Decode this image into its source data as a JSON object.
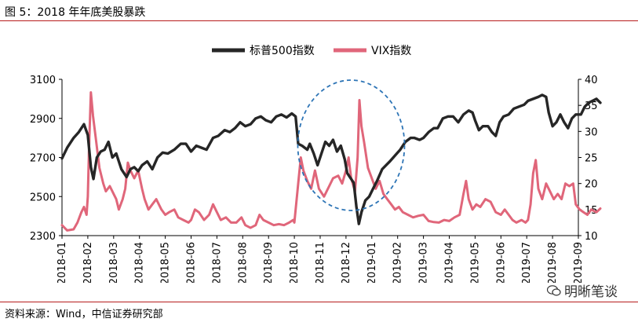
{
  "header": {
    "title": "图 5：2018 年年底美股暴跌"
  },
  "footer": {
    "source": "资料来源：Wind，中信证券研究部"
  },
  "watermark": {
    "text": "明晰笔谈",
    "icon": "wechat-icon"
  },
  "colors": {
    "spx": "#262626",
    "vix": "#e0667a",
    "rule": "#b71c1c",
    "ellipse": "#2e75b6"
  },
  "chart_data": {
    "type": "line",
    "legend": [
      "标普500指数",
      "VIX指数"
    ],
    "legend_position": "top-center",
    "grid": false,
    "x_ticks": [
      "2018-01",
      "2018-02",
      "2018-03",
      "2018-04",
      "2018-05",
      "2018-06",
      "2018-07",
      "2018-08",
      "2018-09",
      "2018-10",
      "2018-11",
      "2018-12",
      "2019-01",
      "2019-02",
      "2019-03",
      "2019-04",
      "2019-05",
      "2019-06",
      "2019-07",
      "2019-08",
      "2019-09"
    ],
    "y_left": {
      "ticks": [
        2300,
        2500,
        2700,
        2900,
        3100
      ],
      "lim": [
        2300,
        3100
      ]
    },
    "y_right": {
      "ticks": [
        10,
        15,
        20,
        25,
        30,
        35,
        40
      ],
      "lim": [
        10,
        40
      ]
    },
    "series": [
      {
        "name": "标普500指数",
        "axis": "left",
        "points": [
          [
            0,
            2695
          ],
          [
            0.2,
            2750
          ],
          [
            0.45,
            2800
          ],
          [
            0.65,
            2830
          ],
          [
            0.85,
            2870
          ],
          [
            1.0,
            2815
          ],
          [
            1.12,
            2650
          ],
          [
            1.22,
            2590
          ],
          [
            1.35,
            2700
          ],
          [
            1.5,
            2730
          ],
          [
            1.65,
            2740
          ],
          [
            1.8,
            2780
          ],
          [
            1.95,
            2700
          ],
          [
            2.1,
            2720
          ],
          [
            2.3,
            2640
          ],
          [
            2.5,
            2600
          ],
          [
            2.65,
            2640
          ],
          [
            2.8,
            2650
          ],
          [
            2.95,
            2630
          ],
          [
            3.1,
            2660
          ],
          [
            3.3,
            2680
          ],
          [
            3.5,
            2640
          ],
          [
            3.7,
            2700
          ],
          [
            3.9,
            2725
          ],
          [
            4.1,
            2720
          ],
          [
            4.35,
            2740
          ],
          [
            4.6,
            2770
          ],
          [
            4.8,
            2770
          ],
          [
            5.0,
            2730
          ],
          [
            5.2,
            2760
          ],
          [
            5.4,
            2750
          ],
          [
            5.6,
            2740
          ],
          [
            5.85,
            2800
          ],
          [
            6.05,
            2810
          ],
          [
            6.3,
            2840
          ],
          [
            6.5,
            2830
          ],
          [
            6.7,
            2850
          ],
          [
            6.9,
            2880
          ],
          [
            7.1,
            2860
          ],
          [
            7.3,
            2870
          ],
          [
            7.5,
            2900
          ],
          [
            7.7,
            2910
          ],
          [
            7.9,
            2890
          ],
          [
            8.1,
            2880
          ],
          [
            8.3,
            2910
          ],
          [
            8.5,
            2920
          ],
          [
            8.7,
            2905
          ],
          [
            8.9,
            2925
          ],
          [
            9.05,
            2910
          ],
          [
            9.15,
            2770
          ],
          [
            9.3,
            2760
          ],
          [
            9.5,
            2740
          ],
          [
            9.6,
            2770
          ],
          [
            9.75,
            2720
          ],
          [
            9.9,
            2660
          ],
          [
            10.05,
            2720
          ],
          [
            10.2,
            2780
          ],
          [
            10.35,
            2760
          ],
          [
            10.5,
            2790
          ],
          [
            10.65,
            2730
          ],
          [
            10.8,
            2760
          ],
          [
            10.95,
            2690
          ],
          [
            11.05,
            2620
          ],
          [
            11.15,
            2600
          ],
          [
            11.3,
            2570
          ],
          [
            11.4,
            2450
          ],
          [
            11.5,
            2360
          ],
          [
            11.6,
            2420
          ],
          [
            11.75,
            2480
          ],
          [
            11.9,
            2500
          ],
          [
            12.05,
            2540
          ],
          [
            12.2,
            2580
          ],
          [
            12.4,
            2640
          ],
          [
            12.55,
            2660
          ],
          [
            12.7,
            2680
          ],
          [
            12.9,
            2710
          ],
          [
            13.1,
            2740
          ],
          [
            13.3,
            2780
          ],
          [
            13.5,
            2800
          ],
          [
            13.65,
            2800
          ],
          [
            13.85,
            2790
          ],
          [
            14.0,
            2800
          ],
          [
            14.2,
            2830
          ],
          [
            14.4,
            2850
          ],
          [
            14.55,
            2850
          ],
          [
            14.75,
            2900
          ],
          [
            14.95,
            2910
          ],
          [
            15.15,
            2910
          ],
          [
            15.35,
            2880
          ],
          [
            15.55,
            2920
          ],
          [
            15.75,
            2940
          ],
          [
            15.9,
            2930
          ],
          [
            16.0,
            2890
          ],
          [
            16.15,
            2840
          ],
          [
            16.3,
            2860
          ],
          [
            16.5,
            2860
          ],
          [
            16.65,
            2830
          ],
          [
            16.8,
            2810
          ],
          [
            16.95,
            2880
          ],
          [
            17.1,
            2910
          ],
          [
            17.3,
            2920
          ],
          [
            17.5,
            2950
          ],
          [
            17.7,
            2960
          ],
          [
            17.9,
            2970
          ],
          [
            18.05,
            2990
          ],
          [
            18.25,
            3000
          ],
          [
            18.45,
            3010
          ],
          [
            18.6,
            3020
          ],
          [
            18.75,
            3010
          ],
          [
            18.85,
            2930
          ],
          [
            19.0,
            2860
          ],
          [
            19.15,
            2880
          ],
          [
            19.3,
            2920
          ],
          [
            19.45,
            2880
          ],
          [
            19.6,
            2850
          ],
          [
            19.75,
            2900
          ],
          [
            19.9,
            2920
          ],
          [
            20.1,
            2920
          ],
          [
            20.25,
            2960
          ],
          [
            20.4,
            2980
          ],
          [
            20.55,
            2990
          ],
          [
            20.7,
            3000
          ],
          [
            20.85,
            2980
          ]
        ]
      },
      {
        "name": "VIX指数",
        "axis": "right",
        "points": [
          [
            0,
            12.0
          ],
          [
            0.2,
            11.0
          ],
          [
            0.45,
            11.2
          ],
          [
            0.6,
            12.5
          ],
          [
            0.75,
            14.5
          ],
          [
            0.85,
            15.5
          ],
          [
            0.95,
            14.0
          ],
          [
            1.0,
            17.5
          ],
          [
            1.05,
            27.0
          ],
          [
            1.12,
            37.5
          ],
          [
            1.2,
            33.0
          ],
          [
            1.3,
            29.0
          ],
          [
            1.45,
            23.0
          ],
          [
            1.6,
            20.0
          ],
          [
            1.7,
            18.5
          ],
          [
            1.85,
            19.5
          ],
          [
            2.0,
            18.0
          ],
          [
            2.1,
            17.0
          ],
          [
            2.2,
            15.0
          ],
          [
            2.35,
            17.0
          ],
          [
            2.45,
            19.0
          ],
          [
            2.55,
            24.0
          ],
          [
            2.65,
            22.5
          ],
          [
            2.8,
            21.0
          ],
          [
            2.95,
            22.5
          ],
          [
            3.1,
            19.0
          ],
          [
            3.2,
            17.0
          ],
          [
            3.35,
            15.0
          ],
          [
            3.5,
            16.0
          ],
          [
            3.65,
            17.0
          ],
          [
            3.85,
            15.0
          ],
          [
            4.0,
            14.0
          ],
          [
            4.15,
            14.5
          ],
          [
            4.35,
            15.0
          ],
          [
            4.5,
            13.5
          ],
          [
            4.7,
            13.0
          ],
          [
            4.9,
            12.5
          ],
          [
            5.0,
            13.0
          ],
          [
            5.15,
            15.0
          ],
          [
            5.3,
            14.5
          ],
          [
            5.5,
            13.0
          ],
          [
            5.7,
            14.0
          ],
          [
            5.85,
            16.0
          ],
          [
            6.0,
            14.5
          ],
          [
            6.15,
            13.0
          ],
          [
            6.35,
            13.5
          ],
          [
            6.55,
            12.5
          ],
          [
            6.75,
            12.5
          ],
          [
            6.95,
            13.5
          ],
          [
            7.1,
            12.0
          ],
          [
            7.3,
            11.5
          ],
          [
            7.5,
            12.0
          ],
          [
            7.65,
            14.0
          ],
          [
            7.8,
            13.0
          ],
          [
            8.0,
            12.5
          ],
          [
            8.2,
            12.0
          ],
          [
            8.4,
            12.2
          ],
          [
            8.6,
            12.0
          ],
          [
            8.8,
            12.5
          ],
          [
            8.95,
            13.0
          ],
          [
            9.0,
            12.5
          ],
          [
            9.15,
            20.0
          ],
          [
            9.25,
            25.0
          ],
          [
            9.35,
            22.5
          ],
          [
            9.5,
            20.5
          ],
          [
            9.65,
            19.0
          ],
          [
            9.8,
            22.5
          ],
          [
            9.95,
            19.0
          ],
          [
            10.15,
            17.5
          ],
          [
            10.35,
            19.5
          ],
          [
            10.5,
            21.0
          ],
          [
            10.7,
            21.5
          ],
          [
            10.85,
            20.0
          ],
          [
            11.0,
            22.5
          ],
          [
            11.1,
            25.0
          ],
          [
            11.2,
            21.0
          ],
          [
            11.35,
            18.5
          ],
          [
            11.45,
            25.0
          ],
          [
            11.52,
            36.0
          ],
          [
            11.6,
            31.0
          ],
          [
            11.7,
            28.0
          ],
          [
            11.85,
            23.0
          ],
          [
            12.0,
            21.0
          ],
          [
            12.15,
            19.0
          ],
          [
            12.3,
            20.5
          ],
          [
            12.45,
            18.0
          ],
          [
            12.6,
            17.0
          ],
          [
            12.75,
            16.0
          ],
          [
            12.9,
            15.0
          ],
          [
            13.05,
            15.5
          ],
          [
            13.2,
            14.5
          ],
          [
            13.4,
            14.0
          ],
          [
            13.6,
            13.5
          ],
          [
            13.8,
            13.8
          ],
          [
            14.0,
            14.0
          ],
          [
            14.2,
            12.8
          ],
          [
            14.4,
            12.6
          ],
          [
            14.6,
            12.5
          ],
          [
            14.8,
            13.0
          ],
          [
            15.0,
            12.8
          ],
          [
            15.2,
            13.5
          ],
          [
            15.4,
            14.0
          ],
          [
            15.55,
            18.0
          ],
          [
            15.65,
            20.5
          ],
          [
            15.75,
            17.0
          ],
          [
            15.9,
            15.0
          ],
          [
            16.05,
            16.0
          ],
          [
            16.2,
            15.5
          ],
          [
            16.4,
            17.0
          ],
          [
            16.6,
            16.5
          ],
          [
            16.8,
            14.5
          ],
          [
            17.0,
            14.0
          ],
          [
            17.15,
            15.0
          ],
          [
            17.3,
            14.0
          ],
          [
            17.45,
            13.0
          ],
          [
            17.6,
            12.5
          ],
          [
            17.8,
            13.0
          ],
          [
            17.95,
            12.5
          ],
          [
            18.05,
            13.0
          ],
          [
            18.15,
            16.0
          ],
          [
            18.25,
            22.0
          ],
          [
            18.35,
            24.5
          ],
          [
            18.45,
            19.0
          ],
          [
            18.6,
            17.0
          ],
          [
            18.75,
            20.0
          ],
          [
            18.9,
            18.5
          ],
          [
            19.05,
            17.0
          ],
          [
            19.2,
            18.0
          ],
          [
            19.35,
            17.0
          ],
          [
            19.5,
            20.0
          ],
          [
            19.65,
            19.5
          ],
          [
            19.8,
            20.0
          ],
          [
            19.9,
            16.0
          ],
          [
            20.05,
            15.0
          ],
          [
            20.2,
            14.5
          ],
          [
            20.35,
            14.0
          ],
          [
            20.5,
            15.0
          ],
          [
            20.7,
            14.5
          ],
          [
            20.85,
            15.2
          ]
        ]
      }
    ],
    "annotations": [
      {
        "type": "dashed-ellipse",
        "around_x": "2018-12"
      }
    ]
  }
}
